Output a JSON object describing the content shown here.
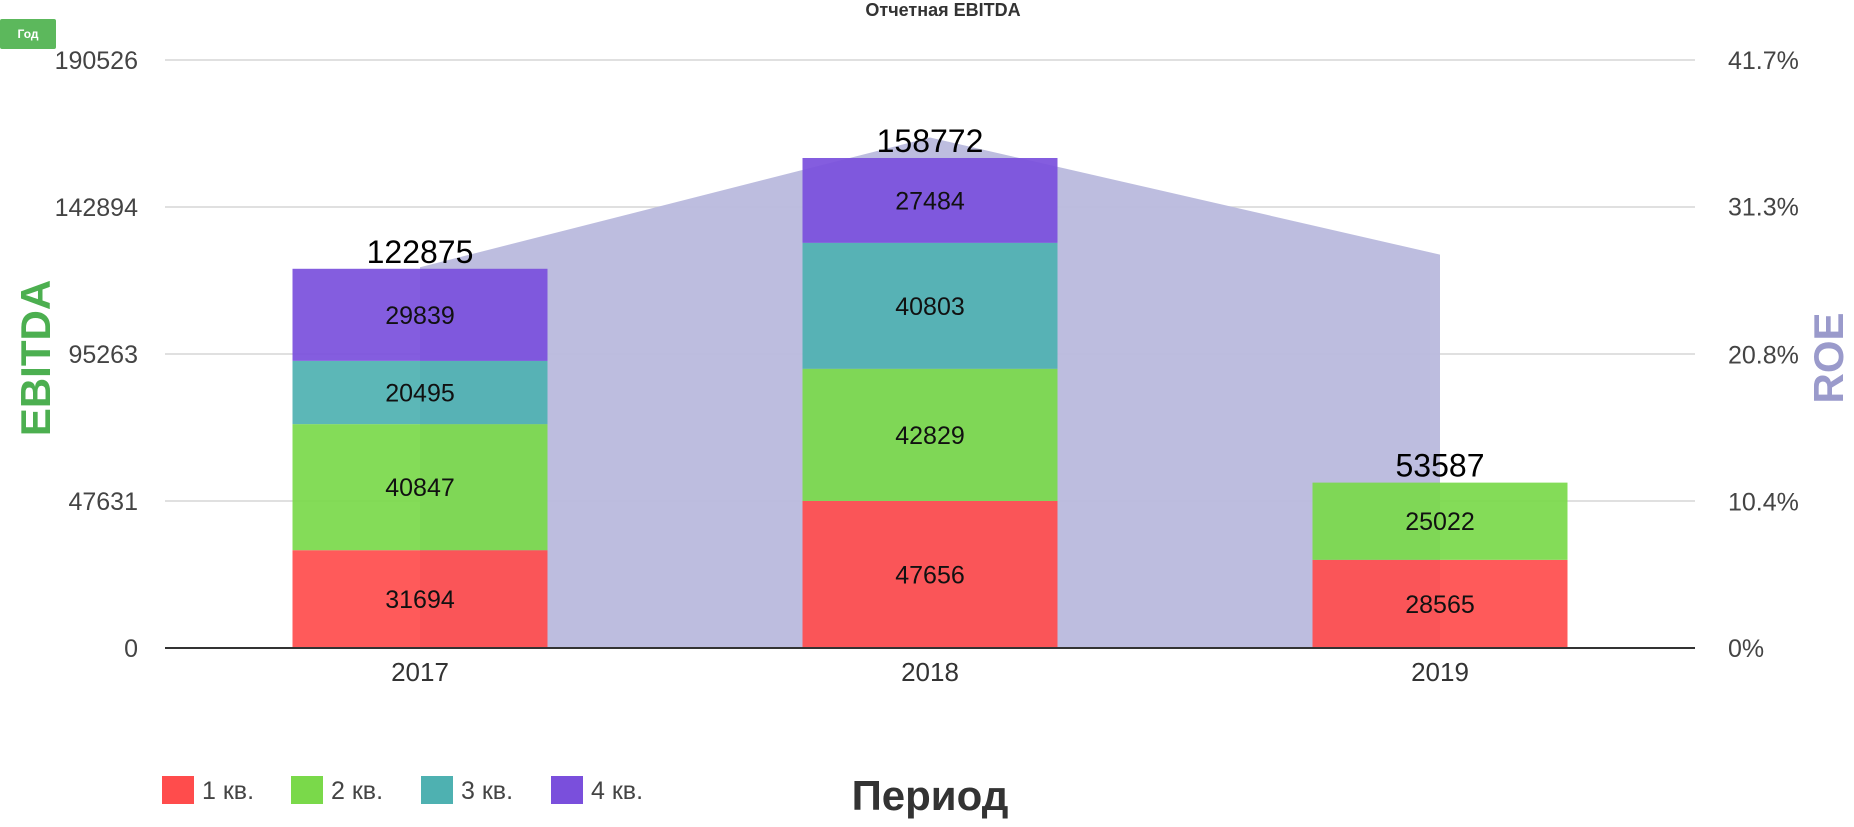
{
  "toolbar": {
    "period_button": "Год"
  },
  "chart_data": {
    "type": "bar",
    "title": "Отчетная EBITDA",
    "xlabel": "Период",
    "ylabel": "EBITDA",
    "y2label": "ROE",
    "categories": [
      "2017",
      "2018",
      "2019"
    ],
    "series": [
      {
        "name": "1 кв.",
        "color": "#ff4c4c",
        "values": [
          31694,
          47656,
          28565
        ]
      },
      {
        "name": "2 кв.",
        "color": "#7ad94a",
        "values": [
          40847,
          42829,
          25022
        ]
      },
      {
        "name": "3 кв.",
        "color": "#4eb1b1",
        "values": [
          20495,
          40803,
          null
        ]
      },
      {
        "name": "4 кв.",
        "color": "#7a4fdc",
        "values": [
          29839,
          27484,
          null
        ]
      }
    ],
    "totals": [
      122875,
      158772,
      53587
    ],
    "totals_labels": [
      "122875",
      "158772",
      "53587"
    ],
    "area_series": {
      "name": "ROE",
      "color": "#b9b9dd",
      "values": [
        27.0,
        36.2,
        27.9
      ]
    },
    "ylim": [
      0,
      190526
    ],
    "yticks": [
      0,
      47631,
      95263,
      142894,
      190526
    ],
    "ytick_labels": [
      "0",
      "47631",
      "95263",
      "142894",
      "190526"
    ],
    "y2lim": [
      0,
      41.7
    ],
    "y2ticks": [
      0,
      10.4,
      20.8,
      31.3,
      41.7
    ],
    "y2tick_labels": [
      "0%",
      "10.4%",
      "20.8%",
      "31.3%",
      "41.7%"
    ],
    "grid": true,
    "legend_position": "bottom-left"
  }
}
